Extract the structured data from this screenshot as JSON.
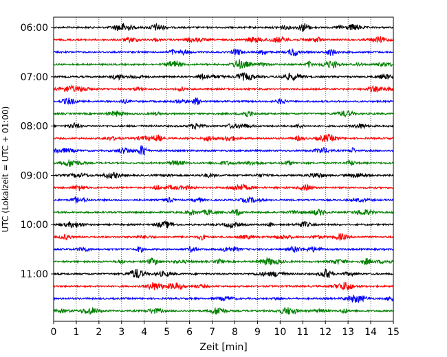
{
  "chart_data": {
    "type": "line",
    "title": "",
    "xlabel": "Zeit  [min]",
    "ylabel": "UTC (Lokalzeit = UTC + 01:00)",
    "xlim": [
      0,
      15
    ],
    "x_ticks": [
      "0",
      "1",
      "2",
      "3",
      "4",
      "5",
      "6",
      "7",
      "8",
      "9",
      "10",
      "11",
      "12",
      "13",
      "14",
      "15"
    ],
    "y_tick_labels": [
      "06:00",
      "07:00",
      "08:00",
      "09:00",
      "10:00",
      "11:00"
    ],
    "y_tick_rows": [
      0,
      4,
      8,
      12,
      16,
      20
    ],
    "rows": 24,
    "row_interval_minutes": 15,
    "start_time": "06:00",
    "end_time": "11:45",
    "grid": {
      "x": true,
      "style": "dotted"
    },
    "trace_colors": [
      "#000000",
      "#ff0000",
      "#0000ff",
      "#008000"
    ],
    "description_of_series": "Helicorder seismogram: 24 stacked 15-minute traces cycling black, red, blue, green"
  }
}
